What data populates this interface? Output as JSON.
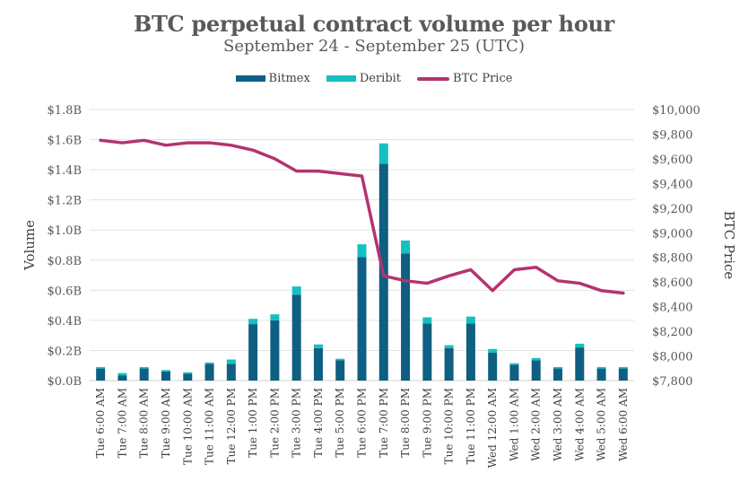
{
  "chart_data": {
    "type": "bar",
    "stacked": true,
    "title": "BTC perpetual contract volume per hour",
    "subtitle": "September 24 - September 25 (UTC)",
    "xlabel": "",
    "ylabel": "Volume",
    "y2label": "BTC Price",
    "ylim": [
      0,
      1.8
    ],
    "y2lim": [
      7800,
      10000
    ],
    "grid": true,
    "legend_position": "top-center",
    "yticks": [
      "$0.0B",
      "$0.2B",
      "$0.4B",
      "$0.6B",
      "$0.8B",
      "$1.0B",
      "$1.2B",
      "$1.4B",
      "$1.6B",
      "$1.8B"
    ],
    "y2ticks": [
      "$7,800",
      "$8,000",
      "$8,200",
      "$8,400",
      "$8,600",
      "$8,800",
      "$9,000",
      "$9,200",
      "$9,400",
      "$9,600",
      "$9,800",
      "$10,000"
    ],
    "categories": [
      "Tue 6:00 AM",
      "Tue 7:00 AM",
      "Tue 8:00 AM",
      "Tue 9:00 AM",
      "Tue 10:00 AM",
      "Tue 11:00 AM",
      "Tue 12:00 PM",
      "Tue 1:00 PM",
      "Tue 2:00 PM",
      "Tue 3:00 PM",
      "Tue 4:00 PM",
      "Tue 5:00 PM",
      "Tue 6:00 PM",
      "Tue 7:00 PM",
      "Tue 8:00 PM",
      "Tue 9:00 PM",
      "Tue 10:00 PM",
      "Tue 11:00 PM",
      "Wed 12:00 AM",
      "Wed 1:00 AM",
      "Wed 2:00 AM",
      "Wed 3:00 AM",
      "Wed 4:00 AM",
      "Wed 5:00 AM",
      "Wed 6:00 AM"
    ],
    "series": [
      {
        "name": "Bitmex",
        "kind": "bar",
        "axis": "left",
        "color": "#0e5f82",
        "values": [
          0.08,
          0.035,
          0.08,
          0.06,
          0.045,
          0.11,
          0.11,
          0.375,
          0.4,
          0.57,
          0.215,
          0.135,
          0.82,
          1.44,
          0.845,
          0.38,
          0.215,
          0.38,
          0.185,
          0.105,
          0.135,
          0.08,
          0.22,
          0.08,
          0.08
        ]
      },
      {
        "name": "Deribit",
        "kind": "bar",
        "axis": "left",
        "color": "#16bfbf",
        "values": [
          0.01,
          0.015,
          0.01,
          0.01,
          0.01,
          0.01,
          0.03,
          0.035,
          0.04,
          0.055,
          0.025,
          0.01,
          0.085,
          0.135,
          0.085,
          0.04,
          0.02,
          0.045,
          0.025,
          0.01,
          0.015,
          0.01,
          0.025,
          0.01,
          0.01
        ]
      },
      {
        "name": "BTC Price",
        "kind": "line",
        "axis": "right",
        "color": "#b5336f",
        "values": [
          9750,
          9730,
          9750,
          9710,
          9730,
          9730,
          9710,
          9670,
          9600,
          9500,
          9500,
          9480,
          9460,
          8650,
          8610,
          8590,
          8650,
          8700,
          8530,
          8700,
          8720,
          8610,
          8590,
          8530,
          8510
        ]
      }
    ]
  }
}
